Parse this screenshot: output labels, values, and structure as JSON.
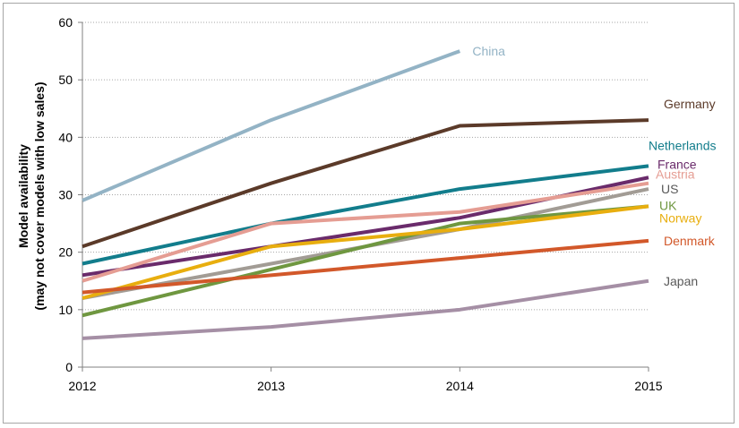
{
  "chart_data": {
    "type": "line",
    "x": [
      2012,
      2013,
      2014,
      2015
    ],
    "xtick_labels": [
      "2012",
      "2013",
      "2014",
      "2015"
    ],
    "ylim": [
      0,
      60
    ],
    "yticks": [
      0,
      10,
      20,
      30,
      40,
      50,
      60
    ],
    "ytick_labels": [
      "0",
      "10",
      "20",
      "30",
      "40",
      "50",
      "60"
    ],
    "ylabel_line1": "Model availability",
    "ylabel_line2": "(may not cover models with low sales)",
    "xlabel": "",
    "title": "",
    "grid": "horizontal dotted",
    "legend": "inline labels at line ends",
    "series": [
      {
        "name": "China",
        "color": "#93b3c5",
        "values": [
          29,
          43,
          55,
          null
        ]
      },
      {
        "name": "Germany",
        "color": "#5b3a29",
        "values": [
          21,
          32,
          42,
          43
        ]
      },
      {
        "name": "Netherlands",
        "color": "#127d8c",
        "values": [
          18,
          25,
          31,
          35
        ]
      },
      {
        "name": "France",
        "color": "#6a2b6b",
        "values": [
          16,
          21,
          26,
          33
        ]
      },
      {
        "name": "Austria",
        "color": "#e59d93",
        "values": [
          15,
          25,
          27,
          32
        ]
      },
      {
        "name": "US",
        "color": "#a29c95",
        "values": [
          12,
          18,
          24,
          31
        ]
      },
      {
        "name": "UK",
        "color": "#6f9740",
        "values": [
          9,
          17,
          25,
          28
        ]
      },
      {
        "name": "Norway",
        "color": "#e8ae0f",
        "values": [
          12,
          21,
          24,
          28
        ]
      },
      {
        "name": "Denmark",
        "color": "#d2582a",
        "values": [
          13,
          16,
          19,
          22
        ]
      },
      {
        "name": "Japan",
        "color": "#a58fa5",
        "values": [
          5,
          7,
          10,
          15
        ]
      }
    ],
    "label_colors": {
      "China": "#93b3c5",
      "Germany": "#5b3a29",
      "Netherlands": "#127d8c",
      "France": "#6a2b6b",
      "Austria": "#e59d93",
      "US": "#595959",
      "UK": "#6f9740",
      "Norway": "#e8ae0f",
      "Denmark": "#d2582a",
      "Japan": "#595959"
    }
  }
}
